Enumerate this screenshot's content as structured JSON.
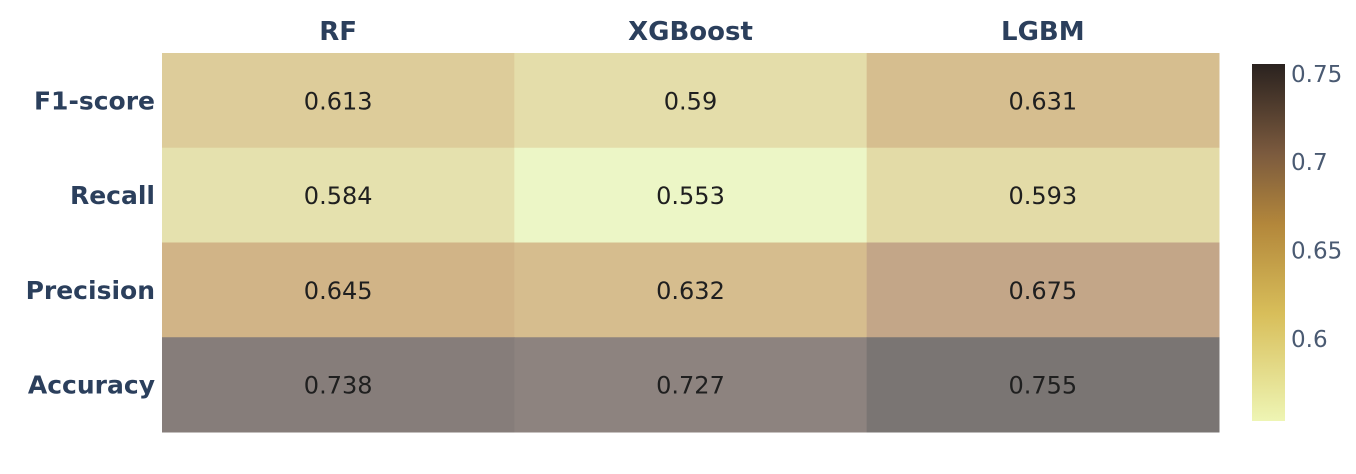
{
  "chart_data": {
    "type": "heatmap",
    "x_categories": [
      "RF",
      "XGBoost",
      "LGBM"
    ],
    "y_categories": [
      "F1-score",
      "Recall",
      "Precision",
      "Accuracy"
    ],
    "values": [
      [
        0.613,
        0.59,
        0.631
      ],
      [
        0.584,
        0.553,
        0.593
      ],
      [
        0.645,
        0.632,
        0.675
      ],
      [
        0.738,
        0.727,
        0.755
      ]
    ],
    "colorbar": {
      "min": 0.553,
      "max": 0.755,
      "ticks": [
        0.6,
        0.65,
        0.7,
        0.75
      ],
      "tick_labels": [
        "0.6",
        "0.65",
        "0.7",
        "0.75"
      ],
      "colorscale": [
        [
          0.0,
          "#ecf6c6"
        ],
        [
          0.22,
          "#e2d8a4"
        ],
        [
          0.45,
          "#d2b487"
        ],
        [
          0.7,
          "#b99e88"
        ],
        [
          0.85,
          "#8f8480"
        ],
        [
          1.0,
          "#7a7573"
        ]
      ],
      "bar_colorscale": [
        [
          0.0,
          "#eef5b4"
        ],
        [
          0.3,
          "#d8be5a"
        ],
        [
          0.55,
          "#b3873b"
        ],
        [
          0.75,
          "#7b5a3e"
        ],
        [
          1.0,
          "#2a221f"
        ]
      ]
    },
    "colors": {
      "axis_label": "#2b3f5c",
      "cell_text": "#1f1f1f",
      "tick_text": "#4a5a72"
    }
  }
}
